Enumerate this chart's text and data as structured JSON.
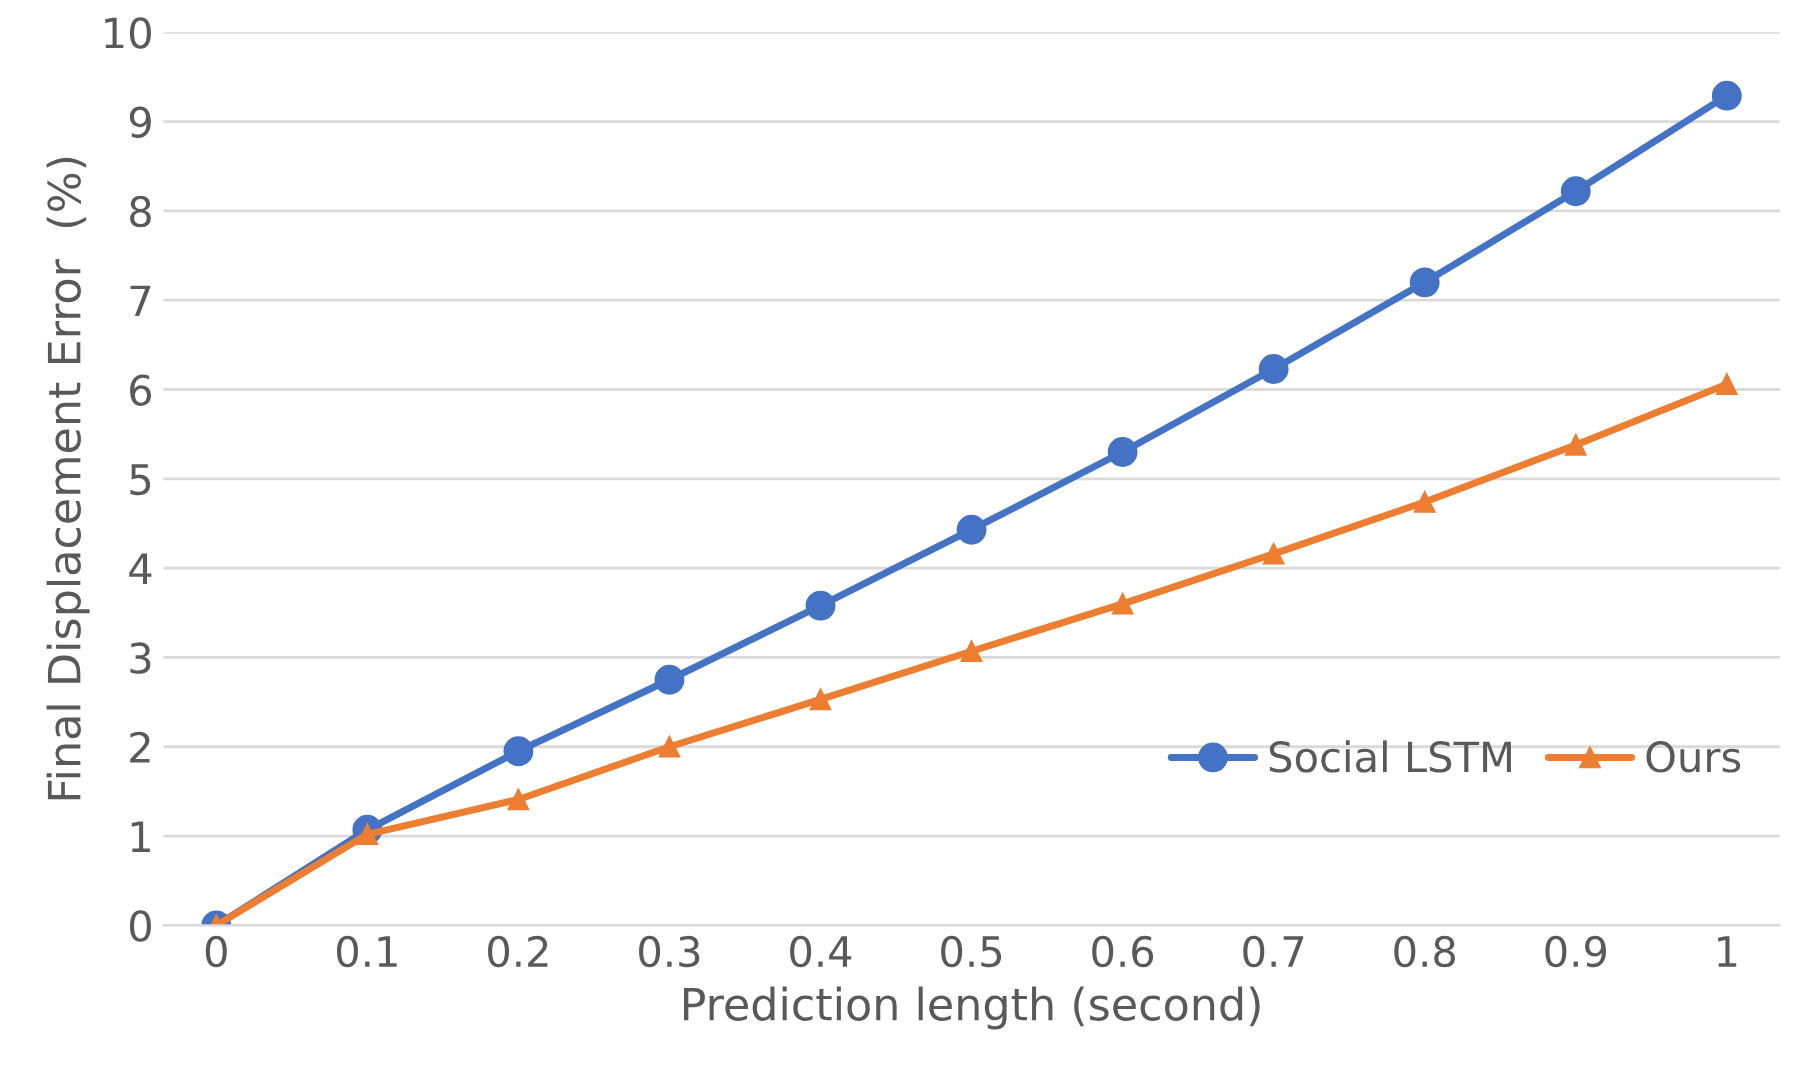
{
  "chart_data": {
    "type": "line",
    "xlabel": "Prediction length (second)",
    "ylabel": "Final Displacement Error  (%)",
    "categories": [
      "0",
      "0.1",
      "0.2",
      "0.3",
      "0.4",
      "0.5",
      "0.6",
      "0.7",
      "0.8",
      "0.9",
      "1"
    ],
    "series": [
      {
        "name": "Social LSTM",
        "color": "#4472c4",
        "marker": "circle",
        "values": [
          0,
          1.07,
          1.95,
          2.75,
          3.58,
          4.43,
          5.3,
          6.23,
          7.2,
          8.22,
          9.29
        ]
      },
      {
        "name": "Ours",
        "color": "#ed7d31",
        "marker": "triangle",
        "values": [
          0,
          1.02,
          1.41,
          2.0,
          2.53,
          3.07,
          3.6,
          4.16,
          4.74,
          5.38,
          6.06
        ]
      }
    ],
    "ylim": [
      0,
      10
    ],
    "yticks": [
      0,
      1,
      2,
      3,
      4,
      5,
      6,
      7,
      8,
      9,
      10
    ],
    "grid": "y",
    "legend": "lower right",
    "line_style": "solid"
  }
}
